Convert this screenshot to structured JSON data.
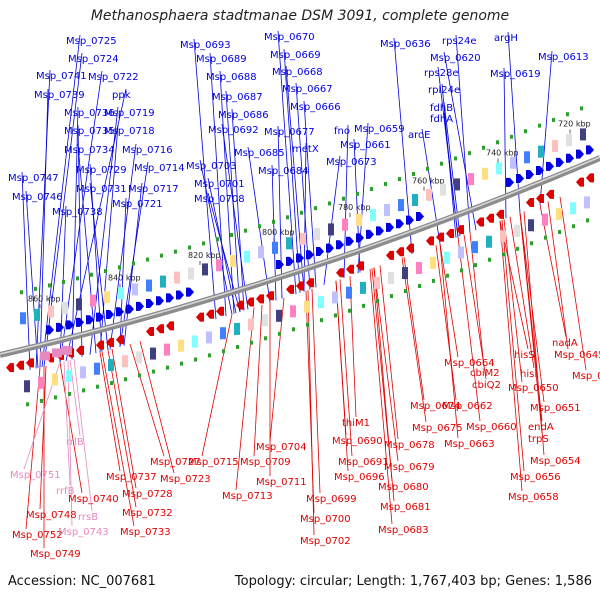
{
  "title": "Methanosphaera stadtmanae DSM 3091, complete genome",
  "accession": "Accession: NC_007681",
  "stats": "Topology: circular; Length: 1,767,403 bp; Genes: 1,586",
  "colors": {
    "forward": "#0000e0",
    "reverse": "#e00000",
    "rna": "#e58ac0",
    "backbone": "#8c8c8c",
    "marker": "#2e9e2e"
  },
  "ticks": [
    "720 kbp",
    "740 kbp",
    "760 kbp",
    "780 kbp",
    "800 kbp",
    "820 kbp",
    "840 kbp",
    "860 kbp"
  ],
  "forward_labels": [
    "Msp_0725",
    "Msp_0724",
    "Msp_0741",
    "Msp_0722",
    "Msp_0739",
    "ppk",
    "Msp_0736",
    "Msp_0719",
    "Msp_0735",
    "Msp_0718",
    "Msp_0734",
    "Msp_0716",
    "Msp_0747",
    "Msp_0729",
    "Msp_0714",
    "Msp_0746",
    "Msp_0731",
    "Msp_0717",
    "Msp_0738",
    "Msp_0721",
    "Msp_0693",
    "Msp_0670",
    "Msp_0689",
    "Msp_0669",
    "Msp_0688",
    "Msp_0668",
    "Msp_0687",
    "Msp_0667",
    "Msp_0686",
    "Msp_0666",
    "Msp_0692",
    "Msp_0677",
    "Msp_0685",
    "metX",
    "Msp_0703",
    "Msp_0684",
    "Msp_0673",
    "Msp_0701",
    "Msp_0708",
    "fno",
    "Msp_0659",
    "Msp_0661",
    "Msp_0636",
    "rps24e",
    "argH",
    "Msp_0620",
    "Msp_0613",
    "rps28e",
    "Msp_0619",
    "rpl24e",
    "fdhB",
    "fdhA",
    "aroE"
  ],
  "reverse_labels": [
    "nadA",
    "Msp_0645",
    "Msp_0664",
    "hisS",
    "cbiM2",
    "hisI",
    "Msp_0646",
    "cbiQ2",
    "Msp_0650",
    "Msp_0662",
    "Msp_0651",
    "Msp_0674",
    "Msp_0660",
    "endA",
    "thiM1",
    "Msp_0675",
    "trpS",
    "Msp_0663",
    "Msp_0690",
    "Msp_0678",
    "Msp_0654",
    "Msp_0704",
    "Msp_0715",
    "Msp_0691",
    "Msp_0679",
    "Msp_0727",
    "Msp_0709",
    "Msp_0656",
    "Msp_0696",
    "Msp_0680",
    "Msp_0737",
    "Msp_0723",
    "Msp_0711",
    "Msp_0658",
    "Msp_0740",
    "Msp_0728",
    "Msp_0713",
    "Msp_0699",
    "Msp_0681",
    "Msp_0748",
    "Msp_0732",
    "Msp_0700",
    "Msp_0683",
    "Msp_0752",
    "Msp_0733",
    "Msp_0702",
    "Msp_0749"
  ],
  "rna_labels": [
    "Msp_0751",
    "rrlB",
    "rrfB",
    "rrsB",
    "Msp_0743"
  ]
}
